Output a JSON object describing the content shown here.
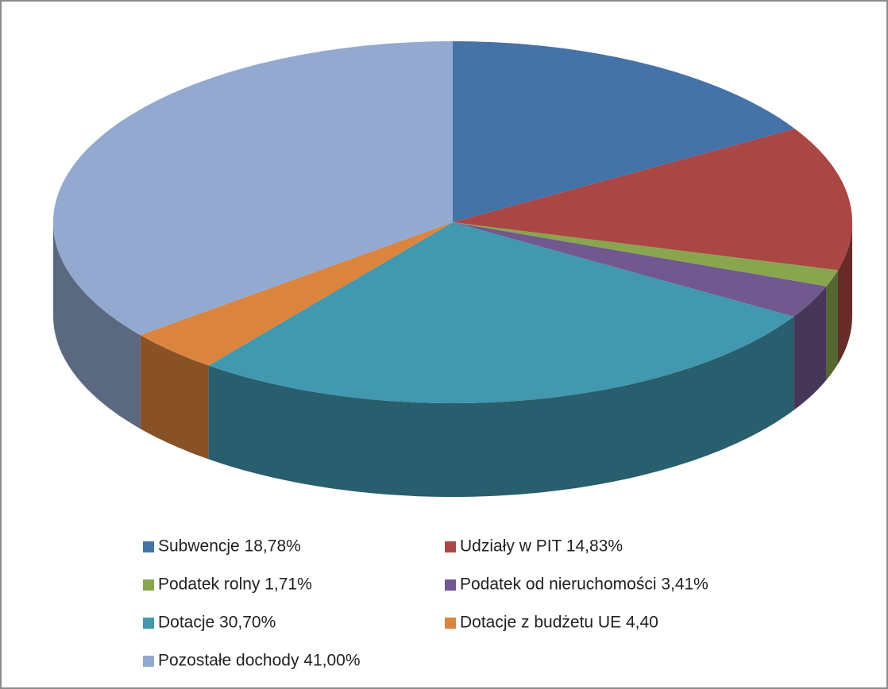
{
  "chart_data": {
    "type": "pie3d",
    "categories": [
      "Subwencje  18,78%",
      "Udziały w PIT  14,83%",
      "Podatek rolny  1,71%",
      "Podatek od nieruchomości 3,41%",
      "Dotacje 30,70%",
      "Dotacje z budżetu UE  4,40",
      "Pozostałe dochody  41,00%"
    ],
    "values": [
      18.78,
      14.83,
      1.71,
      3.41,
      30.7,
      4.4,
      41.0
    ],
    "colors": [
      "#4572a7",
      "#aa4643",
      "#89a54e",
      "#71588f",
      "#4198af",
      "#db843d",
      "#93a9cf"
    ],
    "legend": "bottom"
  }
}
